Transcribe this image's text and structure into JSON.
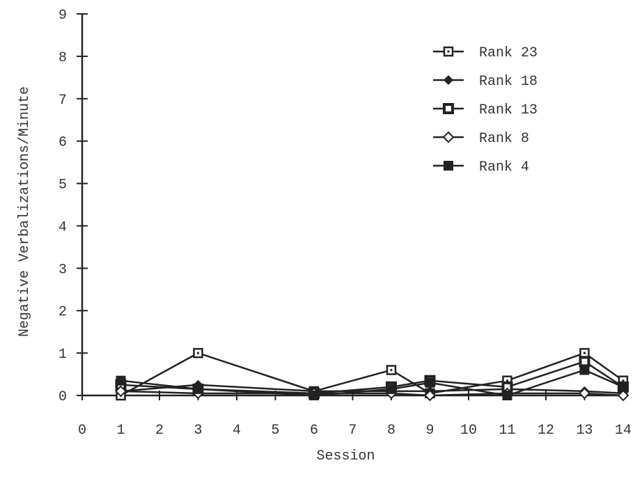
{
  "chart_data": {
    "type": "line",
    "title": "",
    "xlabel": "Session",
    "ylabel": "Negative Verbalizations/Minute",
    "xlim": [
      0,
      14
    ],
    "ylim": [
      0,
      9
    ],
    "x_ticks": [
      0,
      1,
      2,
      3,
      4,
      5,
      6,
      7,
      8,
      9,
      10,
      11,
      12,
      13,
      14
    ],
    "y_ticks": [
      0,
      1,
      2,
      3,
      4,
      5,
      6,
      7,
      8,
      9
    ],
    "grid": false,
    "legend_position": "top-right",
    "x": [
      1,
      3,
      6,
      8,
      9,
      11,
      13,
      14
    ],
    "series": [
      {
        "name": "Rank 23",
        "marker": "open-square",
        "values": [
          0.0,
          1.0,
          0.1,
          0.6,
          0.05,
          0.35,
          1.0,
          0.35
        ]
      },
      {
        "name": "Rank 18",
        "marker": "filled-diamond",
        "values": [
          0.1,
          0.25,
          0.1,
          0.1,
          0.1,
          0.15,
          0.1,
          0.05
        ]
      },
      {
        "name": "Rank 13",
        "marker": "open-square-thick",
        "values": [
          0.25,
          0.15,
          0.05,
          0.2,
          0.35,
          0.2,
          0.8,
          0.2
        ]
      },
      {
        "name": "Rank 8",
        "marker": "open-diamond",
        "values": [
          0.1,
          0.05,
          0.05,
          0.05,
          0.0,
          0.05,
          0.05,
          0.0
        ]
      },
      {
        "name": "Rank 4",
        "marker": "filled-square",
        "values": [
          0.35,
          0.15,
          0.0,
          0.15,
          0.3,
          0.0,
          0.6,
          0.2
        ]
      }
    ]
  }
}
